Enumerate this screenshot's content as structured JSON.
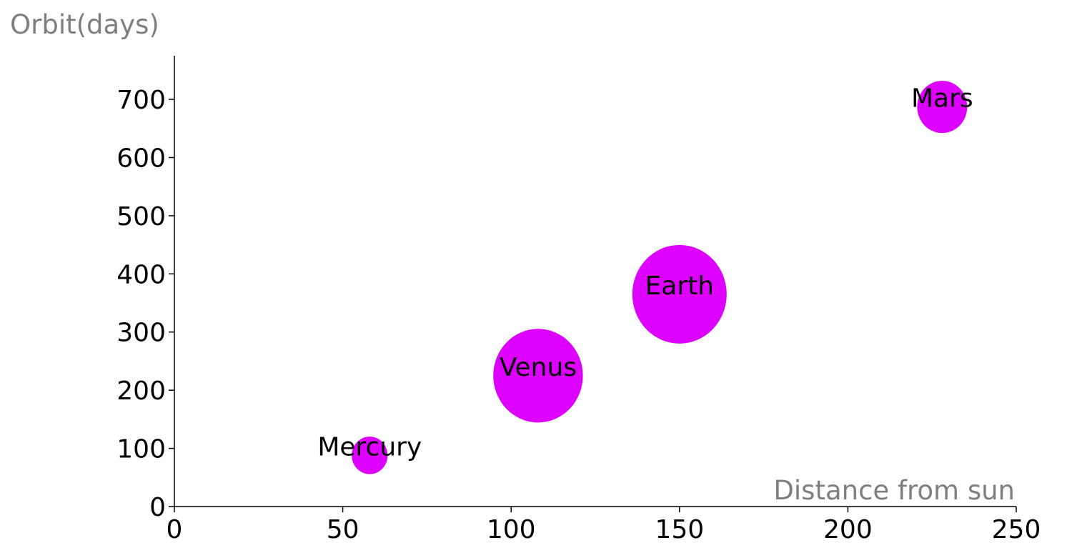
{
  "chart_data": {
    "type": "scatter",
    "title": "",
    "xlabel": "Distance from sun",
    "ylabel": "Orbit(days)",
    "xlim": [
      0,
      250
    ],
    "ylim": [
      0,
      775
    ],
    "x_ticks": [
      0,
      50,
      100,
      150,
      200,
      250
    ],
    "y_ticks": [
      0,
      100,
      200,
      300,
      400,
      500,
      600,
      700
    ],
    "grid": false,
    "bubble_color": "#dd00ff",
    "points": [
      {
        "label": "Mercury",
        "x": 58,
        "y": 88,
        "size": 0.38
      },
      {
        "label": "Venus",
        "x": 108,
        "y": 225,
        "size": 0.95
      },
      {
        "label": "Earth",
        "x": 150,
        "y": 365,
        "size": 1.0
      },
      {
        "label": "Mars",
        "x": 228,
        "y": 687,
        "size": 0.53
      }
    ]
  }
}
